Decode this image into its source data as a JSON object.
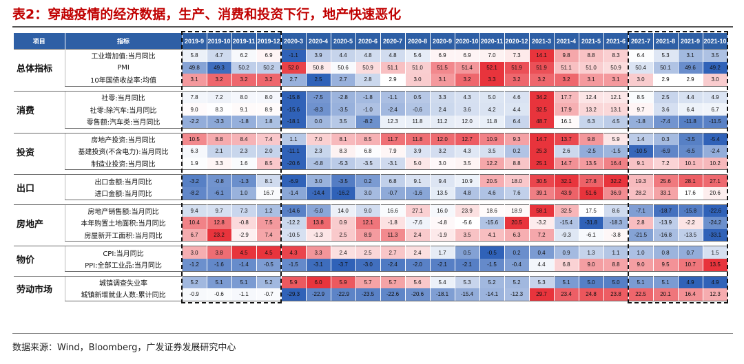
{
  "title": "表2：穿越疫情的经济数据，生产、消费和投资下行，地产快速恶化",
  "source": "数据来源：Wind，Bloomberg，广发证券发展研究中心",
  "header": {
    "item": "项目",
    "indicator": "指标"
  },
  "columns": [
    "2019-9",
    "2019-10",
    "2019-11",
    "2019-12",
    "2020-3",
    "2020-4",
    "2020-5",
    "2020-6",
    "2020-7",
    "2020-8",
    "2020-9",
    "2020-10",
    "2020-11",
    "2020-12",
    "2021-3",
    "2021-4",
    "2021-5",
    "2021-6",
    "2021-7",
    "2021-8",
    "2021-9",
    "2021-10"
  ],
  "colors": {
    "header_bg": "#2e5fa5",
    "title": "#c00000",
    "positive": "#e0303a",
    "negative": "#2a5fb5"
  },
  "groups": [
    {
      "category": "总体指标",
      "rows": [
        {
          "indicator": "工业增加值:当月同比",
          "values": [
            "5.8",
            "4.7",
            "6.2",
            "6.9",
            "-1.1",
            "3.9",
            "4.4",
            "4.8",
            "4.8",
            "5.6",
            "6.9",
            "6.9",
            "7.0",
            "7.3",
            "14.1",
            "9.8",
            "8.8",
            "8.3",
            "6.4",
            "5.3",
            "3.1",
            "3.5"
          ]
        },
        {
          "indicator": "PMI",
          "values": [
            "49.8",
            "49.3",
            "50.2",
            "50.2",
            "52.0",
            "50.8",
            "50.6",
            "50.9",
            "51.1",
            "51.0",
            "51.5",
            "51.4",
            "52.1",
            "51.9",
            "51.9",
            "51.1",
            "51.0",
            "50.9",
            "50.4",
            "50.1",
            "49.6",
            "49.2"
          ]
        },
        {
          "indicator": "10年国债收益率:均值",
          "values": [
            "3.1",
            "3.2",
            "3.2",
            "3.2",
            "2.7",
            "2.5",
            "2.7",
            "2.8",
            "2.9",
            "3.0",
            "3.1",
            "3.2",
            "3.3",
            "3.2",
            "3.2",
            "3.2",
            "3.1",
            "3.1",
            "3.0",
            "2.9",
            "2.9",
            "3.0"
          ]
        }
      ]
    },
    {
      "category": "消费",
      "rows": [
        {
          "indicator": "社零:当月同比",
          "values": [
            "7.8",
            "7.2",
            "8.0",
            "8.0",
            "-15.8",
            "-7.5",
            "-2.8",
            "-1.8",
            "-1.1",
            "0.5",
            "3.3",
            "4.3",
            "5.0",
            "4.6",
            "34.2",
            "17.7",
            "12.4",
            "12.1",
            "8.5",
            "2.5",
            "4.4",
            "4.9"
          ]
        },
        {
          "indicator": "社零:除汽车:当月同比",
          "values": [
            "9.0",
            "8.3",
            "9.1",
            "8.9",
            "-15.6",
            "-8.3",
            "-3.5",
            "-1.0",
            "-2.4",
            "-0.6",
            "2.4",
            "3.6",
            "4.2",
            "4.4",
            "32.5",
            "17.9",
            "13.2",
            "13.1",
            "9.7",
            "3.6",
            "6.4",
            "6.7"
          ]
        },
        {
          "indicator": "零售额:汽车类:当月同比",
          "values": [
            "-2.2",
            "-3.3",
            "-1.8",
            "1.8",
            "-18.1",
            "0.0",
            "3.5",
            "-8.2",
            "12.3",
            "11.8",
            "11.2",
            "12.0",
            "11.8",
            "6.4",
            "48.7",
            "16.1",
            "6.3",
            "4.5",
            "-1.8",
            "-7.4",
            "-11.8",
            "-11.5"
          ]
        }
      ]
    },
    {
      "category": "投资",
      "rows": [
        {
          "indicator": "房地产投资:当月同比",
          "values": [
            "10.5",
            "8.8",
            "8.4",
            "7.4",
            "1.1",
            "7.0",
            "8.1",
            "8.5",
            "11.7",
            "11.8",
            "12.0",
            "12.7",
            "10.9",
            "9.3",
            "14.7",
            "13.7",
            "9.8",
            "5.9",
            "1.4",
            "0.3",
            "-3.5",
            "-5.4"
          ]
        },
        {
          "indicator": "基建投资(不含电力):当月同比",
          "values": [
            "6.3",
            "2.1",
            "2.3",
            "2.0",
            "-11.1",
            "2.3",
            "8.3",
            "6.8",
            "7.9",
            "3.9",
            "3.2",
            "4.3",
            "3.5",
            "0.2",
            "25.3",
            "2.6",
            "-2.5",
            "-1.5",
            "-10.5",
            "-6.9",
            "-6.5",
            "-2.4"
          ]
        },
        {
          "indicator": "制造业投资:当月同比",
          "values": [
            "1.9",
            "3.3",
            "1.6",
            "8.5",
            "-20.6",
            "-6.8",
            "-5.3",
            "-3.5",
            "-3.1",
            "5.0",
            "3.0",
            "3.5",
            "12.2",
            "8.8",
            "25.1",
            "14.7",
            "13.5",
            "16.4",
            "9.1",
            "7.2",
            "10.1",
            "10.2"
          ]
        }
      ]
    },
    {
      "category": "出口",
      "rows": [
        {
          "indicator": "出口金额:当月同比",
          "values": [
            "-3.2",
            "-0.8",
            "-1.3",
            "8.1",
            "-6.9",
            "3.0",
            "-3.5",
            "0.2",
            "6.8",
            "9.1",
            "9.4",
            "10.9",
            "20.5",
            "18.0",
            "30.5",
            "32.1",
            "27.8",
            "32.2",
            "19.3",
            "25.6",
            "28.1",
            "27.1"
          ]
        },
        {
          "indicator": "进口金额:当月同比",
          "values": [
            "-8.2",
            "-6.1",
            "1.0",
            "16.7",
            "-1.4",
            "-14.4",
            "-16.2",
            "3.0",
            "-0.7",
            "-1.6",
            "13.5",
            "4.8",
            "4.6",
            "7.6",
            "39.1",
            "43.9",
            "51.6",
            "36.9",
            "28.2",
            "33.1",
            "17.6",
            "20.6"
          ]
        }
      ]
    },
    {
      "category": "房地产",
      "rows": [
        {
          "indicator": "房地产销售额:当月同比",
          "values": [
            "9.4",
            "9.7",
            "7.3",
            "1.2",
            "-14.6",
            "-5.0",
            "14.0",
            "9.0",
            "16.6",
            "27.1",
            "16.0",
            "23.9",
            "18.6",
            "18.9",
            "58.1",
            "32.5",
            "17.5",
            "8.6",
            "-7.1",
            "-18.7",
            "-15.8",
            "-22.6"
          ]
        },
        {
          "indicator": "本年购置土地面积:当月同比",
          "values": [
            "10.4",
            "12.8",
            "-0.8",
            "7.5",
            "-12.2",
            "13.8",
            "0.9",
            "12.1",
            "-1.8",
            "-7.6",
            "-4.8",
            "-5.6",
            "-15.6",
            "20.5",
            "-3.2",
            "-15.4",
            "-31.8",
            "-18.3",
            "2.8",
            "-13.9",
            "-2.2",
            "-24.2"
          ]
        },
        {
          "indicator": "房屋新开工面积:当月同比",
          "values": [
            "6.7",
            "23.2",
            "-2.9",
            "7.4",
            "-10.5",
            "-1.3",
            "2.5",
            "8.9",
            "11.3",
            "2.4",
            "-1.9",
            "3.5",
            "4.1",
            "6.3",
            "7.2",
            "-9.3",
            "-6.1",
            "-3.8",
            "-21.5",
            "-16.8",
            "-13.5",
            "-33.1"
          ]
        }
      ]
    },
    {
      "category": "物价",
      "rows": [
        {
          "indicator": "CPI:当月同比",
          "values": [
            "3.0",
            "3.8",
            "4.5",
            "4.5",
            "4.3",
            "3.3",
            "2.4",
            "2.5",
            "2.7",
            "2.4",
            "1.7",
            "0.5",
            "-0.5",
            "0.2",
            "0.4",
            "0.9",
            "1.3",
            "1.1",
            "1.0",
            "0.8",
            "0.7",
            "1.5"
          ]
        },
        {
          "indicator": "PPI:全部工业品:当月同比",
          "values": [
            "-1.2",
            "-1.6",
            "-1.4",
            "-0.5",
            "-1.5",
            "-3.1",
            "-3.7",
            "-3.0",
            "-2.4",
            "-2.0",
            "-2.1",
            "-2.1",
            "-1.5",
            "-0.4",
            "4.4",
            "6.8",
            "9.0",
            "8.8",
            "9.0",
            "9.5",
            "10.7",
            "13.5"
          ]
        }
      ]
    },
    {
      "category": "劳动市场",
      "rows": [
        {
          "indicator": "城镇调查失业率",
          "values": [
            "5.2",
            "5.1",
            "5.1",
            "5.2",
            "5.9",
            "6.0",
            "5.9",
            "5.7",
            "5.7",
            "5.6",
            "5.4",
            "5.3",
            "5.2",
            "5.2",
            "5.3",
            "5.1",
            "5.0",
            "5.0",
            "5.1",
            "5.1",
            "4.9",
            "4.9"
          ]
        },
        {
          "indicator": "城镇新增就业人数:累计同比",
          "values": [
            "-0.9",
            "-0.6",
            "-1.1",
            "-0.7",
            "-29.3",
            "-22.9",
            "-22.9",
            "-23.5",
            "-22.6",
            "-20.6",
            "-18.1",
            "-15.4",
            "-14.1",
            "-12.3",
            "29.7",
            "23.4",
            "24.8",
            "23.8",
            "22.5",
            "20.1",
            "16.4",
            "12.3"
          ]
        }
      ]
    }
  ]
}
